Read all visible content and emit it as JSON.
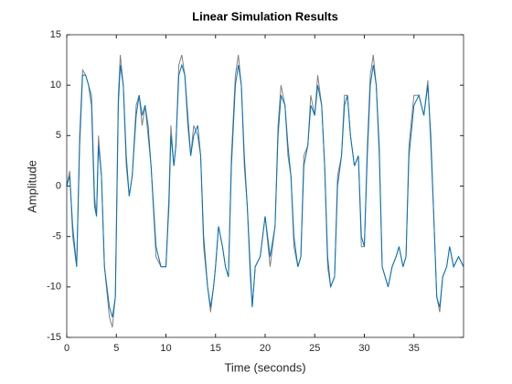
{
  "chart_data": {
    "type": "line",
    "title": "Linear Simulation Results",
    "x_label": "Time (seconds)",
    "y_label": "Amplitude",
    "x": [
      0,
      0.3,
      0.6,
      1.0,
      1.3,
      1.6,
      1.9,
      2.2,
      2.5,
      2.8,
      3.0,
      3.2,
      3.5,
      3.8,
      4.3,
      4.6,
      4.9,
      5.0,
      5.2,
      5.4,
      5.7,
      6.0,
      6.3,
      6.6,
      7.0,
      7.3,
      7.6,
      7.9,
      8.2,
      8.5,
      9.0,
      9.5,
      10.0,
      10.3,
      10.5,
      10.8,
      11.0,
      11.3,
      11.6,
      11.9,
      12.2,
      12.5,
      12.8,
      13.2,
      13.5,
      13.8,
      14.2,
      14.5,
      14.8,
      15.0,
      15.3,
      15.7,
      16.0,
      16.3,
      16.6,
      17.0,
      17.3,
      17.6,
      17.9,
      18.2,
      18.5,
      18.7,
      19.0,
      19.5,
      20.0,
      20.5,
      21.0,
      21.3,
      21.6,
      22.0,
      22.3,
      22.6,
      22.9,
      23.3,
      23.6,
      23.9,
      24.3,
      24.6,
      25.0,
      25.3,
      25.7,
      26.0,
      26.3,
      26.6,
      27.0,
      27.3,
      27.7,
      28.0,
      28.3,
      28.6,
      29.0,
      29.4,
      29.7,
      30.0,
      30.3,
      30.6,
      30.9,
      31.2,
      31.5,
      31.8,
      32.1,
      32.4,
      32.8,
      33.2,
      33.5,
      33.9,
      34.2,
      34.5,
      35.0,
      35.5,
      36.0,
      36.4,
      36.7,
      37.0,
      37.3,
      37.6,
      37.9,
      38.3,
      38.6,
      39.0,
      39.5,
      40.0
    ],
    "series": [
      {
        "color": "#808080",
        "values": [
          0,
          1.5,
          -5,
          -8,
          5,
          11.5,
          11,
          10,
          9,
          -1,
          -3,
          5,
          1,
          -8,
          -13,
          -14,
          -11,
          -4,
          9,
          13,
          10,
          2,
          -1,
          1,
          8,
          9,
          6,
          8,
          5,
          2,
          -7,
          -8,
          -8,
          -1,
          6,
          2,
          4,
          12,
          13,
          11,
          6,
          3,
          6,
          5,
          3,
          -6,
          -10,
          -12.5,
          -10,
          -8,
          -4,
          -6,
          -8,
          -9,
          3,
          11,
          13,
          10,
          2,
          -2,
          -9,
          -12,
          -8,
          -7,
          -3,
          -8,
          -4,
          6,
          10,
          8,
          3,
          1,
          -6,
          -8,
          -7,
          3,
          4,
          9,
          7,
          11,
          8,
          2,
          -8,
          -10,
          -9,
          1,
          3,
          9,
          9,
          5,
          2,
          3,
          -6,
          -6,
          4,
          11,
          13,
          10,
          3,
          -8,
          -9,
          -10,
          -8,
          -7,
          -6,
          -8,
          -7,
          4,
          9,
          9,
          7,
          10.5,
          4,
          -3,
          -11,
          -12.5,
          -9,
          -8,
          -6,
          -8,
          -7,
          -8
        ]
      },
      {
        "color": "#0072bd",
        "values": [
          0,
          1,
          -4,
          -8,
          4,
          11,
          11,
          10,
          8,
          -2,
          -3,
          4,
          1,
          -8,
          -12,
          -13,
          -11,
          -5,
          8,
          12,
          10,
          3,
          -1,
          1,
          7,
          9,
          7,
          8,
          6,
          2,
          -6,
          -8,
          -8,
          -2,
          5,
          2,
          4,
          11,
          12,
          11,
          7,
          3,
          5,
          6,
          3,
          -5,
          -10,
          -12,
          -10,
          -8,
          -4,
          -6,
          -8,
          -9,
          2,
          10,
          12,
          10,
          3,
          -2,
          -8,
          -12,
          -8,
          -7,
          -3,
          -7,
          -4,
          5,
          9,
          8,
          4,
          1,
          -5,
          -8,
          -7,
          2,
          4,
          8,
          7,
          10,
          8,
          2,
          -7,
          -10,
          -9,
          0,
          3,
          8,
          9,
          5,
          2,
          3,
          -5,
          -6,
          3,
          10,
          12,
          10,
          4,
          -8,
          -9,
          -10,
          -8,
          -7,
          -6,
          -8,
          -7,
          3,
          8,
          9,
          7,
          10,
          5,
          -3,
          -11,
          -12,
          -9,
          -8,
          -6,
          -8,
          -7,
          -8
        ]
      }
    ],
    "xlim": [
      0,
      40
    ],
    "xticks": [
      0,
      5,
      10,
      15,
      20,
      25,
      30,
      35
    ],
    "ylim": [
      -15,
      15
    ],
    "yticks": [
      -15,
      -10,
      -5,
      0,
      5,
      10,
      15
    ]
  }
}
